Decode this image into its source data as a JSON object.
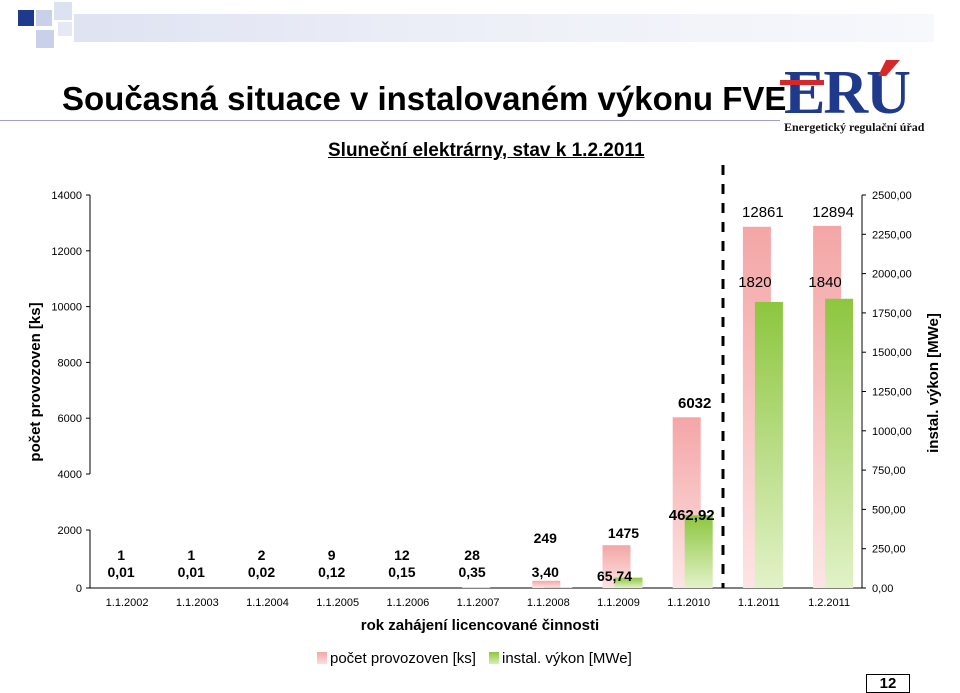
{
  "header": {
    "title": "Současná situace v instalovaném výkonu FVE",
    "subtitle": "Sluneční elektrárny, stav k 1.2.2011"
  },
  "logo": {
    "text": "Energetický regulační úřad"
  },
  "page_number": "12",
  "colors": {
    "count_bar": "#f4a6a6",
    "power_bar": "#8dc63f",
    "accent_blue": "#1f3a8a",
    "accent_red": "#d62828"
  },
  "chart_data": {
    "type": "bar",
    "xlabel": "rok zahájení licencované činnosti",
    "ylabel_left": "počet provozoven [ks]",
    "ylabel_right": "instal. výkon [MWe]",
    "categories": [
      "1.1.2002",
      "1.1.2003",
      "1.1.2004",
      "1.1.2005",
      "1.1.2006",
      "1.1.2007",
      "1.1.2008",
      "1.1.2009",
      "1.1.2010",
      "1.1.2011",
      "1.2.2011"
    ],
    "series": [
      {
        "name": "počet provozoven [ks]",
        "axis": "left",
        "values": [
          1,
          1,
          2,
          9,
          12,
          28,
          249,
          1475,
          6032,
          12861,
          12894
        ],
        "labels": [
          "1",
          "1",
          "2",
          "9",
          "12",
          "28",
          "249",
          "1475",
          "6032",
          "12861",
          "12894"
        ]
      },
      {
        "name": "instal. výkon [MWe]",
        "axis": "right",
        "values": [
          0.01,
          0.01,
          0.02,
          0.12,
          0.15,
          0.35,
          3.4,
          65.74,
          462.92,
          1820,
          1840
        ],
        "labels": [
          "0,01",
          "0,01",
          "0,02",
          "0,12",
          "0,15",
          "0,35",
          "3,40",
          "65,74",
          "462,92",
          "1820",
          "1840"
        ]
      }
    ],
    "left_axis": {
      "ylim": [
        0,
        14000
      ],
      "ticks": [
        0,
        2000,
        4000,
        6000,
        8000,
        10000,
        12000,
        14000
      ],
      "tick_labels": [
        "0",
        "2000",
        "4000",
        "6000",
        "8000",
        "10000",
        "12000",
        "14000"
      ]
    },
    "right_axis": {
      "ylim": [
        0,
        2500
      ],
      "ticks": [
        0,
        250,
        500,
        750,
        1000,
        1250,
        1500,
        1750,
        2000,
        2250,
        2500
      ],
      "tick_labels": [
        "0,00",
        "250,00",
        "500,00",
        "750,00",
        "1000,00",
        "1250,00",
        "1500,00",
        "1750,00",
        "2000,00",
        "2250,00",
        "2500,00"
      ]
    },
    "axis_break": "between 2000 and 4000 on left axis",
    "legend_position": "bottom",
    "grid": false
  }
}
